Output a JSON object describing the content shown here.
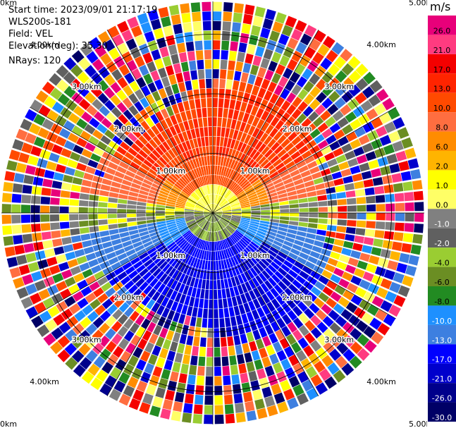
{
  "header": {
    "start_time": "Start time: 2023/09/01 21:17:19",
    "instrument": "WLS200s-181",
    "field": "Field: VEL",
    "elevation": "Elevation(deg): 35.30",
    "nrays": "NRays: 120"
  },
  "chart_data": {
    "type": "heatmap",
    "projection": "polar PPI",
    "field": "VEL",
    "unit": "m/s",
    "n_rays": 120,
    "range_rings_km": [
      "1.00km",
      "2.00km",
      "3.00km",
      "4.00km",
      "5.00km"
    ],
    "colorbar": {
      "ticks": [
        "26.0",
        "21.0",
        "17.0",
        "13.0",
        "10.0",
        "8.0",
        "6.0",
        "2.0",
        "1.0",
        "0.0",
        "-1.0",
        "-2.0",
        "-4.0",
        "-6.0",
        "-8.0",
        "-10.0",
        "-13.0",
        "-17.0",
        "-21.0",
        "-26.0",
        "-30.0"
      ],
      "colors": [
        "#e8007a",
        "#ff3b80",
        "#f40000",
        "#ff2400",
        "#ff4a00",
        "#ff6e40",
        "#ff8c00",
        "#ffb400",
        "#ffff00",
        "#ffff66",
        "#808080",
        "#606060",
        "#9acd32",
        "#6b8e23",
        "#228b22",
        "#1e90ff",
        "#3d7fe0",
        "#0000ff",
        "#0000cc",
        "#00008b",
        "#000066"
      ]
    }
  }
}
